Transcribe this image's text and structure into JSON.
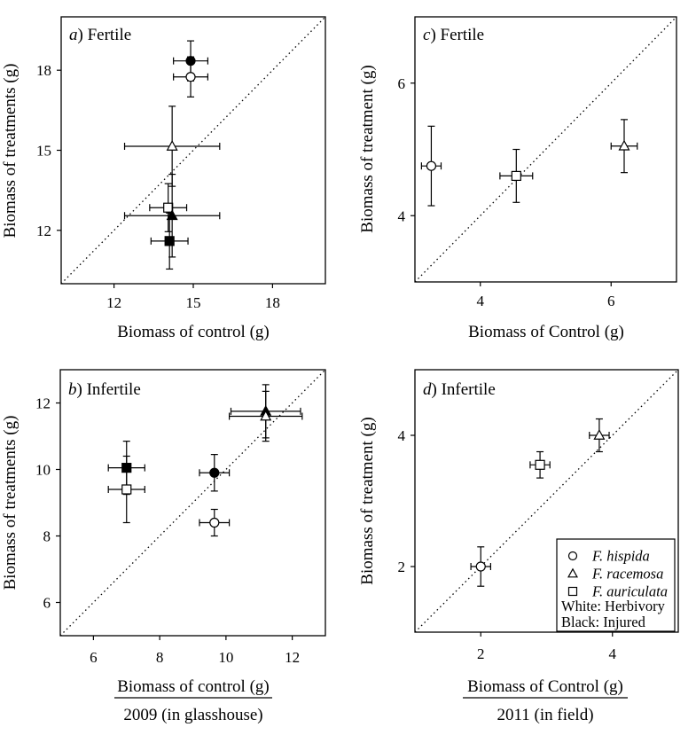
{
  "colors": {
    "ink": "#000000",
    "background": "#ffffff",
    "open_marker_fill": "#ffffff",
    "filled_marker_fill": "#000000"
  },
  "chart_data": [
    {
      "id": "a",
      "type": "scatter",
      "title_italic": "a",
      "title_rest": ") Fertile",
      "xlabel": "Biomass of control (g)",
      "ylabel": "Biomass of treatments (g)",
      "xlabel_underlined": false,
      "x_axis_caption": "",
      "xlim": [
        10,
        20
      ],
      "ylim": [
        10,
        20
      ],
      "xticks": [
        12,
        15,
        18
      ],
      "yticks": [
        12,
        15,
        18
      ],
      "identity_line": "dotted",
      "points": [
        {
          "species": "F. hispida",
          "treatment": "Injured",
          "marker": "circle",
          "fill": "black",
          "x": 14.9,
          "y": 18.35,
          "xerr": 0.65,
          "yerr": 0.75
        },
        {
          "species": "F. hispida",
          "treatment": "Herbivory",
          "marker": "circle",
          "fill": "white",
          "x": 14.9,
          "y": 17.75,
          "xerr": 0.65,
          "yerr": 0.75
        },
        {
          "species": "F. racemosa",
          "treatment": "Herbivory",
          "marker": "triangle",
          "fill": "white",
          "x": 14.2,
          "y": 15.15,
          "xerr": 1.8,
          "yerr": 1.5
        },
        {
          "species": "F. auriculata",
          "treatment": "Herbivory",
          "marker": "square",
          "fill": "white",
          "x": 14.05,
          "y": 12.85,
          "xerr": 0.7,
          "yerr": 0.9
        },
        {
          "species": "F. racemosa",
          "treatment": "Injured",
          "marker": "triangle",
          "fill": "black",
          "x": 14.2,
          "y": 12.55,
          "xerr": 1.8,
          "yerr": 1.55
        },
        {
          "species": "F. auriculata",
          "treatment": "Injured",
          "marker": "square",
          "fill": "black",
          "x": 14.1,
          "y": 11.6,
          "xerr": 0.7,
          "yerr": 1.05
        }
      ]
    },
    {
      "id": "b",
      "type": "scatter",
      "title_italic": "b",
      "title_rest": ") Infertile",
      "xlabel": "Biomass of control (g)",
      "ylabel": "Biomass of treatments (g)",
      "xlabel_underlined": true,
      "x_axis_caption": "2009 (in glasshouse)",
      "xlim": [
        5,
        13
      ],
      "ylim": [
        5,
        13
      ],
      "xticks": [
        6,
        8,
        10,
        12
      ],
      "yticks": [
        6,
        8,
        10,
        12
      ],
      "identity_line": "dotted",
      "points": [
        {
          "species": "F. auriculata",
          "treatment": "Injured",
          "marker": "square",
          "fill": "black",
          "x": 7.0,
          "y": 10.05,
          "xerr": 0.55,
          "yerr": 0.8
        },
        {
          "species": "F. auriculata",
          "treatment": "Herbivory",
          "marker": "square",
          "fill": "white",
          "x": 7.0,
          "y": 9.4,
          "xerr": 0.55,
          "yerr": 1.0
        },
        {
          "species": "F. hispida",
          "treatment": "Injured",
          "marker": "circle",
          "fill": "black",
          "x": 9.65,
          "y": 9.9,
          "xerr": 0.45,
          "yerr": 0.55
        },
        {
          "species": "F. hispida",
          "treatment": "Herbivory",
          "marker": "circle",
          "fill": "white",
          "x": 9.65,
          "y": 8.4,
          "xerr": 0.45,
          "yerr": 0.4
        },
        {
          "species": "F. racemosa",
          "treatment": "Injured",
          "marker": "triangle",
          "fill": "black",
          "x": 11.2,
          "y": 11.75,
          "xerr": 1.05,
          "yerr": 0.8
        },
        {
          "species": "F. racemosa",
          "treatment": "Herbivory",
          "marker": "triangle",
          "fill": "white",
          "x": 11.2,
          "y": 11.6,
          "xerr": 1.1,
          "yerr": 0.75
        }
      ]
    },
    {
      "id": "c",
      "type": "scatter",
      "title_italic": "c",
      "title_rest": ") Fertile",
      "xlabel": "Biomass of Control (g)",
      "ylabel": "Biomass of treatment (g)",
      "xlabel_underlined": false,
      "x_axis_caption": "",
      "xlim": [
        3,
        7
      ],
      "ylim": [
        3,
        7
      ],
      "xticks": [
        4,
        6
      ],
      "yticks": [
        4,
        6
      ],
      "identity_line": "dotted",
      "points": [
        {
          "species": "F. hispida",
          "treatment": "Herbivory",
          "marker": "circle",
          "fill": "white",
          "x": 3.25,
          "y": 4.75,
          "xerr": 0.15,
          "yerr": 0.6
        },
        {
          "species": "F. auriculata",
          "treatment": "Herbivory",
          "marker": "square",
          "fill": "white",
          "x": 4.55,
          "y": 4.6,
          "xerr": 0.25,
          "yerr": 0.4
        },
        {
          "species": "F. racemosa",
          "treatment": "Herbivory",
          "marker": "triangle",
          "fill": "white",
          "x": 6.2,
          "y": 5.05,
          "xerr": 0.2,
          "yerr": 0.4
        }
      ]
    },
    {
      "id": "d",
      "type": "scatter",
      "title_italic": "d",
      "title_rest": ") Infertile",
      "xlabel": "Biomass of Control (g)",
      "ylabel": "Biomass of treatment (g)",
      "xlabel_underlined": true,
      "x_axis_caption": "2011 (in field)",
      "xlim": [
        1,
        5
      ],
      "ylim": [
        1,
        5
      ],
      "xticks": [
        2,
        4
      ],
      "yticks": [
        2,
        4
      ],
      "identity_line": "dotted",
      "points": [
        {
          "species": "F. hispida",
          "treatment": "Herbivory",
          "marker": "circle",
          "fill": "white",
          "x": 2.0,
          "y": 2.0,
          "xerr": 0.15,
          "yerr": 0.3
        },
        {
          "species": "F. auriculata",
          "treatment": "Herbivory",
          "marker": "square",
          "fill": "white",
          "x": 2.9,
          "y": 3.55,
          "xerr": 0.15,
          "yerr": 0.2
        },
        {
          "species": "F. racemosa",
          "treatment": "Herbivory",
          "marker": "triangle",
          "fill": "white",
          "x": 3.8,
          "y": 4.0,
          "xerr": 0.15,
          "yerr": 0.25
        }
      ]
    }
  ],
  "legend": {
    "position": "panel-d-bottom-right",
    "entries": [
      {
        "marker": "circle",
        "label": "F. hispida"
      },
      {
        "marker": "triangle",
        "label": "F. racemosa"
      },
      {
        "marker": "square",
        "label": "F. auriculata"
      }
    ],
    "notes": [
      "White: Herbivory",
      "Black: Injured"
    ]
  }
}
